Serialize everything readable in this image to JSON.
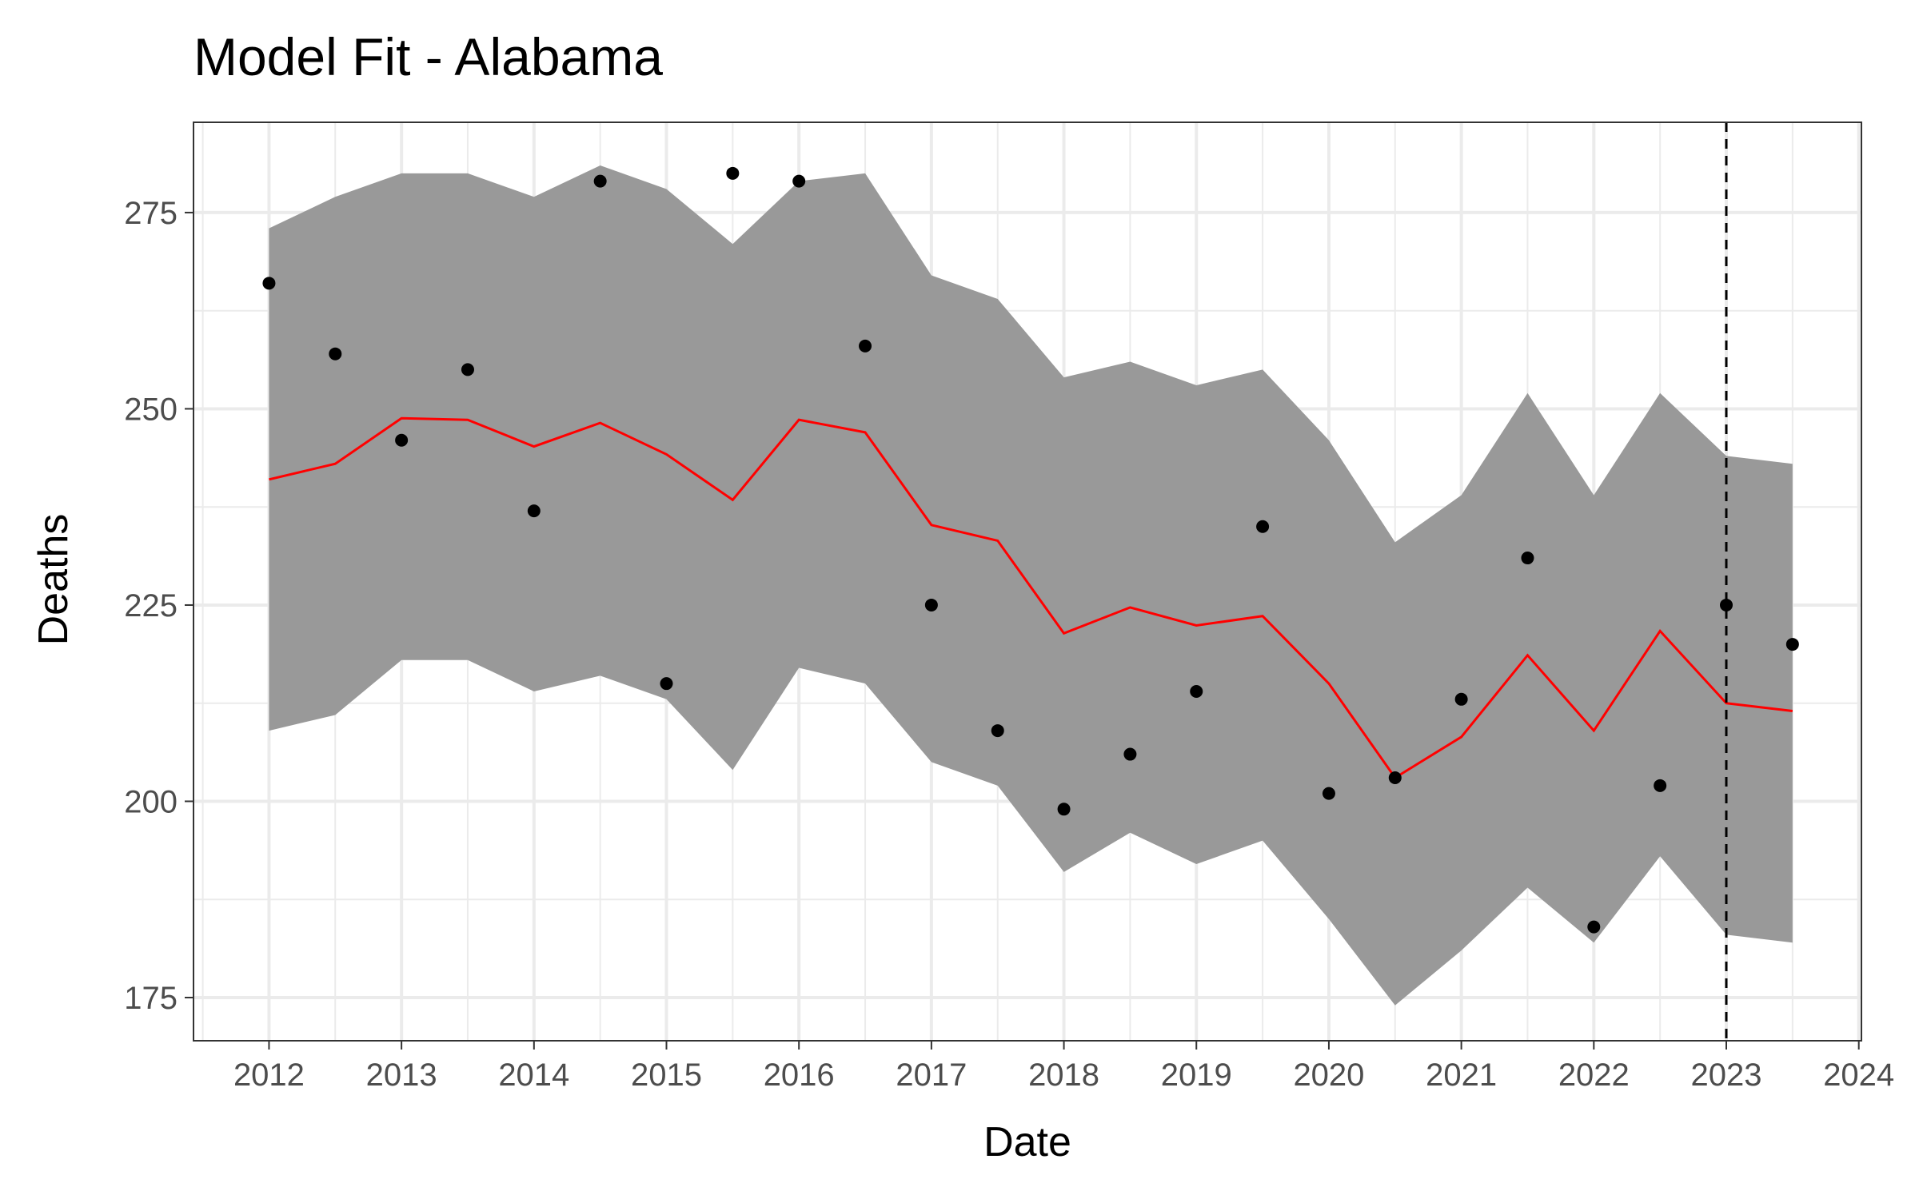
{
  "chart_data": {
    "type": "line",
    "title": "Model Fit - Alabama",
    "xlabel": "Date",
    "ylabel": "Deaths",
    "xlim": [
      2011.43,
      2024.02
    ],
    "ylim": [
      169.5,
      286.5
    ],
    "x_ticks": [
      2012,
      2013,
      2014,
      2015,
      2016,
      2017,
      2018,
      2019,
      2020,
      2021,
      2022,
      2023,
      2024
    ],
    "x_tick_labels": [
      "2012",
      "2013",
      "2014",
      "2015",
      "2016",
      "2017",
      "2018",
      "2019",
      "2020",
      "2021",
      "2022",
      "2023",
      "2024"
    ],
    "x_minor_gridlines": [
      2011.5,
      2012.5,
      2013.5,
      2014.5,
      2015.5,
      2016.5,
      2017.5,
      2018.5,
      2019.5,
      2020.5,
      2021.5,
      2022.5,
      2023.5
    ],
    "y_ticks": [
      175,
      200,
      225,
      250,
      275
    ],
    "y_tick_labels": [
      "175",
      "200",
      "225",
      "250",
      "275"
    ],
    "y_minor_gridlines": [
      187.5,
      212.5,
      237.5,
      262.5
    ],
    "grid": true,
    "x": [
      2012,
      2012.5,
      2013,
      2013.5,
      2014,
      2014.5,
      2015,
      2015.5,
      2016,
      2016.5,
      2017,
      2017.5,
      2018,
      2018.5,
      2019,
      2019.5,
      2020,
      2020.5,
      2021,
      2021.5,
      2022,
      2022.5,
      2023,
      2023.5
    ],
    "series": [
      {
        "kind": "band",
        "lower": [
          209,
          211,
          218,
          218,
          214,
          216,
          213,
          204,
          217,
          215,
          205,
          202,
          191,
          196,
          192,
          195,
          185,
          174,
          181,
          189,
          182,
          193,
          183,
          182
        ],
        "upper": [
          273,
          277,
          280,
          280,
          277,
          281,
          278,
          271,
          279,
          280,
          267,
          264,
          254,
          256,
          253,
          255,
          246,
          233,
          239,
          252,
          239,
          252,
          244,
          243
        ],
        "color": "#999999"
      },
      {
        "kind": "line",
        "values": [
          241,
          243,
          248.8,
          248.6,
          245.2,
          248.2,
          244.2,
          238.4,
          248.6,
          247,
          235.2,
          233.2,
          221.4,
          224.7,
          222.4,
          223.6,
          215,
          203,
          208.2,
          218.6,
          209,
          221.7,
          212.5,
          211.5
        ],
        "color": "#ff0000"
      },
      {
        "kind": "points",
        "values": [
          266,
          257,
          246,
          255,
          237,
          279,
          215,
          280,
          279,
          258,
          225,
          209,
          199,
          206,
          214,
          235,
          201,
          203,
          213,
          231,
          184,
          202,
          225,
          220
        ],
        "color": "#000000"
      }
    ],
    "annotations": [
      {
        "kind": "vline",
        "x": 2023,
        "style": "dashed",
        "color": "#000000"
      }
    ]
  }
}
